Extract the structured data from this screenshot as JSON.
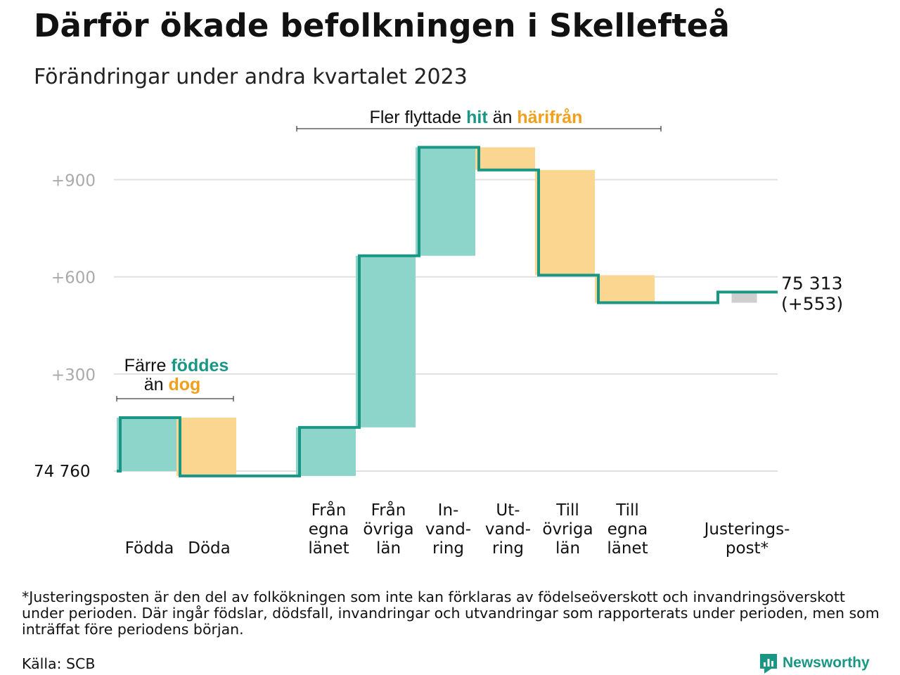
{
  "title": "Därför ökade befolkningen i Skellefteå",
  "subtitle": "Förändringar under andra kvartalet 2023",
  "colors": {
    "line": "#1a9784",
    "increase": "#8dd5cb",
    "decrease": "#fad691",
    "adjustment": "#cfcfcf",
    "grid": "#e0e0e0",
    "tick_text": "#aaaaaa",
    "hit": "#1a9784",
    "harifran": "#f0a01c",
    "brand": "#1a9784"
  },
  "chart_data": {
    "type": "waterfall",
    "start_label": "74  760",
    "end_label": [
      "75 313",
      "(+553)"
    ],
    "yticks": [
      "+300",
      "+600",
      "+900"
    ],
    "ytick_values": [
      300,
      600,
      900
    ],
    "ylim": [
      -15,
      1000
    ],
    "steps": [
      {
        "label": [
          "Födda"
        ],
        "start": 0,
        "end": 165,
        "kind": "increase"
      },
      {
        "label": [
          "Döda"
        ],
        "start": 165,
        "end": -15,
        "kind": "decrease"
      },
      {
        "label": [],
        "start": -15,
        "end": -15,
        "kind": "empty"
      },
      {
        "label": [
          "Från",
          "egna",
          "länet"
        ],
        "start": -15,
        "end": 135,
        "kind": "increase"
      },
      {
        "label": [
          "Från",
          "övriga",
          "län"
        ],
        "start": 135,
        "end": 665,
        "kind": "increase"
      },
      {
        "label": [
          "In-",
          "vand-",
          "ring"
        ],
        "start": 665,
        "end": 1000,
        "kind": "increase"
      },
      {
        "label": [
          "Ut-",
          "vand-",
          "ring"
        ],
        "start": 1000,
        "end": 930,
        "kind": "decrease"
      },
      {
        "label": [
          "Till",
          "övriga",
          "län"
        ],
        "start": 930,
        "end": 605,
        "kind": "decrease"
      },
      {
        "label": [
          "Till",
          "egna",
          "länet"
        ],
        "start": 605,
        "end": 520,
        "kind": "decrease"
      },
      {
        "label": [],
        "start": 520,
        "end": 520,
        "kind": "empty"
      },
      {
        "label": [
          "Justerings-",
          "post*"
        ],
        "start": 520,
        "end": 553,
        "kind": "adjustment"
      }
    ],
    "annotations": {
      "birth": {
        "prefix": "Färre",
        "hl1": "föddes",
        "line2_prefix": "än",
        "hl2": "dog"
      },
      "migration": {
        "prefix": "Fler flyttade",
        "hl1": "hit",
        "mid": "än",
        "hl2": "härifrån"
      }
    }
  },
  "footnote": "*Justeringsposten är den del av folkökningen som inte kan förklaras av födelseöverskott och invandringsöverskott under perioden. Där ingår födslar, dödsfall, invandringar och utvandringar som rapporterats under perioden, men som inträffat före periodens början.",
  "source": "Källa: SCB",
  "brand": "Newsworthy"
}
